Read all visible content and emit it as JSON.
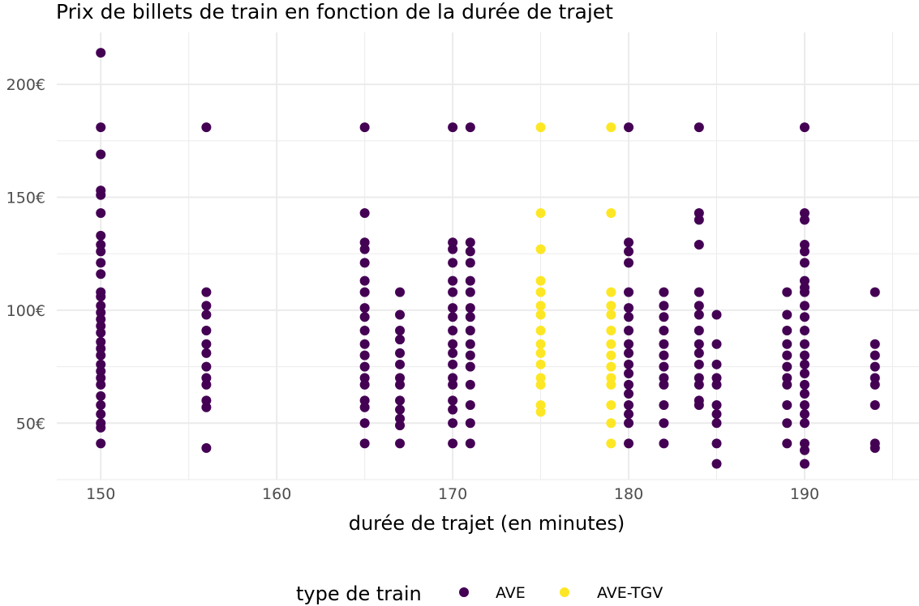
{
  "chart_data": {
    "type": "scatter",
    "title": "Prix de billets de train en fonction de la durée de trajet",
    "xlabel": "durée de trajet (en minutes)",
    "ylabel": "",
    "xlim": [
      147.5,
      196.5
    ],
    "ylim": [
      25,
      223
    ],
    "x_ticks": [
      150,
      160,
      170,
      180,
      190
    ],
    "x_tick_labels": [
      "150",
      "160",
      "170",
      "180",
      "190"
    ],
    "y_ticks": [
      50,
      100,
      150,
      200
    ],
    "y_tick_labels": [
      "50€",
      "100€",
      "150€",
      "200€"
    ],
    "grid": true,
    "legend": {
      "title": "type de train",
      "position": "bottom"
    },
    "series": [
      {
        "name": "AVE",
        "color": "#440154",
        "points": [
          [
            150,
            214
          ],
          [
            150,
            181
          ],
          [
            150,
            169
          ],
          [
            150,
            153
          ],
          [
            150,
            151
          ],
          [
            150,
            143
          ],
          [
            150,
            133
          ],
          [
            150,
            129
          ],
          [
            150,
            126
          ],
          [
            150,
            121
          ],
          [
            150,
            116
          ],
          [
            150,
            108
          ],
          [
            150,
            106
          ],
          [
            150,
            102
          ],
          [
            150,
            99
          ],
          [
            150,
            96
          ],
          [
            150,
            93
          ],
          [
            150,
            90
          ],
          [
            150,
            86
          ],
          [
            150,
            83
          ],
          [
            150,
            80
          ],
          [
            150,
            76
          ],
          [
            150,
            73
          ],
          [
            150,
            70
          ],
          [
            150,
            67
          ],
          [
            150,
            62
          ],
          [
            150,
            58
          ],
          [
            150,
            54
          ],
          [
            150,
            50
          ],
          [
            150,
            48
          ],
          [
            150,
            41
          ],
          [
            156,
            181
          ],
          [
            156,
            108
          ],
          [
            156,
            102
          ],
          [
            156,
            98
          ],
          [
            156,
            91
          ],
          [
            156,
            85
          ],
          [
            156,
            81
          ],
          [
            156,
            75
          ],
          [
            156,
            70
          ],
          [
            156,
            67
          ],
          [
            156,
            60
          ],
          [
            156,
            57
          ],
          [
            156,
            39
          ],
          [
            165,
            181
          ],
          [
            165,
            143
          ],
          [
            165,
            130
          ],
          [
            165,
            127
          ],
          [
            165,
            121
          ],
          [
            165,
            113
          ],
          [
            165,
            108
          ],
          [
            165,
            101
          ],
          [
            165,
            97
          ],
          [
            165,
            91
          ],
          [
            165,
            85
          ],
          [
            165,
            80
          ],
          [
            165,
            75
          ],
          [
            165,
            70
          ],
          [
            165,
            67
          ],
          [
            165,
            60
          ],
          [
            165,
            57
          ],
          [
            165,
            50
          ],
          [
            165,
            41
          ],
          [
            167,
            108
          ],
          [
            167,
            98
          ],
          [
            167,
            91
          ],
          [
            167,
            87
          ],
          [
            167,
            81
          ],
          [
            167,
            76
          ],
          [
            167,
            70
          ],
          [
            167,
            67
          ],
          [
            167,
            60
          ],
          [
            167,
            56
          ],
          [
            167,
            52
          ],
          [
            167,
            49
          ],
          [
            167,
            41
          ],
          [
            170,
            181
          ],
          [
            170,
            130
          ],
          [
            170,
            127
          ],
          [
            170,
            121
          ],
          [
            170,
            113
          ],
          [
            170,
            108
          ],
          [
            170,
            101
          ],
          [
            170,
            97
          ],
          [
            170,
            91
          ],
          [
            170,
            85
          ],
          [
            170,
            81
          ],
          [
            170,
            76
          ],
          [
            170,
            70
          ],
          [
            170,
            67
          ],
          [
            170,
            60
          ],
          [
            170,
            56
          ],
          [
            170,
            50
          ],
          [
            170,
            41
          ],
          [
            171,
            181
          ],
          [
            171,
            130
          ],
          [
            171,
            126
          ],
          [
            171,
            121
          ],
          [
            171,
            113
          ],
          [
            171,
            108
          ],
          [
            171,
            101
          ],
          [
            171,
            97
          ],
          [
            171,
            91
          ],
          [
            171,
            85
          ],
          [
            171,
            80
          ],
          [
            171,
            75
          ],
          [
            171,
            67
          ],
          [
            171,
            58
          ],
          [
            171,
            50
          ],
          [
            171,
            41
          ],
          [
            180,
            181
          ],
          [
            180,
            130
          ],
          [
            180,
            126
          ],
          [
            180,
            121
          ],
          [
            180,
            108
          ],
          [
            180,
            101
          ],
          [
            180,
            97
          ],
          [
            180,
            91
          ],
          [
            180,
            85
          ],
          [
            180,
            81
          ],
          [
            180,
            76
          ],
          [
            180,
            72
          ],
          [
            180,
            67
          ],
          [
            180,
            63
          ],
          [
            180,
            58
          ],
          [
            180,
            54
          ],
          [
            180,
            50
          ],
          [
            180,
            41
          ],
          [
            182,
            108
          ],
          [
            182,
            102
          ],
          [
            182,
            97
          ],
          [
            182,
            91
          ],
          [
            182,
            85
          ],
          [
            182,
            80
          ],
          [
            182,
            75
          ],
          [
            182,
            70
          ],
          [
            182,
            67
          ],
          [
            182,
            58
          ],
          [
            182,
            50
          ],
          [
            182,
            41
          ],
          [
            184,
            181
          ],
          [
            184,
            143
          ],
          [
            184,
            140
          ],
          [
            184,
            129
          ],
          [
            184,
            108
          ],
          [
            184,
            102
          ],
          [
            184,
            98
          ],
          [
            184,
            91
          ],
          [
            184,
            85
          ],
          [
            184,
            81
          ],
          [
            184,
            76
          ],
          [
            184,
            70
          ],
          [
            184,
            67
          ],
          [
            184,
            60
          ],
          [
            184,
            58
          ],
          [
            185,
            98
          ],
          [
            185,
            85
          ],
          [
            185,
            76
          ],
          [
            185,
            70
          ],
          [
            185,
            67
          ],
          [
            185,
            58
          ],
          [
            185,
            54
          ],
          [
            185,
            50
          ],
          [
            185,
            41
          ],
          [
            185,
            32
          ],
          [
            189,
            108
          ],
          [
            189,
            98
          ],
          [
            189,
            91
          ],
          [
            189,
            85
          ],
          [
            189,
            80
          ],
          [
            189,
            75
          ],
          [
            189,
            70
          ],
          [
            189,
            67
          ],
          [
            189,
            58
          ],
          [
            189,
            50
          ],
          [
            189,
            41
          ],
          [
            190,
            181
          ],
          [
            190,
            143
          ],
          [
            190,
            140
          ],
          [
            190,
            129
          ],
          [
            190,
            126
          ],
          [
            190,
            121
          ],
          [
            190,
            113
          ],
          [
            190,
            110
          ],
          [
            190,
            108
          ],
          [
            190,
            102
          ],
          [
            190,
            97
          ],
          [
            190,
            91
          ],
          [
            190,
            85
          ],
          [
            190,
            80
          ],
          [
            190,
            76
          ],
          [
            190,
            72
          ],
          [
            190,
            67
          ],
          [
            190,
            63
          ],
          [
            190,
            58
          ],
          [
            190,
            54
          ],
          [
            190,
            50
          ],
          [
            190,
            41
          ],
          [
            190,
            38
          ],
          [
            190,
            32
          ],
          [
            194,
            108
          ],
          [
            194,
            85
          ],
          [
            194,
            80
          ],
          [
            194,
            75
          ],
          [
            194,
            70
          ],
          [
            194,
            67
          ],
          [
            194,
            58
          ],
          [
            194,
            41
          ],
          [
            194,
            39
          ]
        ]
      },
      {
        "name": "AVE-TGV",
        "color": "#fde725",
        "points": [
          [
            175,
            181
          ],
          [
            175,
            143
          ],
          [
            175,
            127
          ],
          [
            175,
            113
          ],
          [
            175,
            108
          ],
          [
            175,
            102
          ],
          [
            175,
            98
          ],
          [
            175,
            91
          ],
          [
            175,
            85
          ],
          [
            175,
            81
          ],
          [
            175,
            76
          ],
          [
            175,
            70
          ],
          [
            175,
            67
          ],
          [
            175,
            58
          ],
          [
            175,
            55
          ],
          [
            179,
            181
          ],
          [
            179,
            143
          ],
          [
            179,
            108
          ],
          [
            179,
            102
          ],
          [
            179,
            98
          ],
          [
            179,
            91
          ],
          [
            179,
            85
          ],
          [
            179,
            80
          ],
          [
            179,
            75
          ],
          [
            179,
            70
          ],
          [
            179,
            67
          ],
          [
            179,
            58
          ],
          [
            179,
            50
          ],
          [
            179,
            41
          ]
        ]
      }
    ]
  }
}
